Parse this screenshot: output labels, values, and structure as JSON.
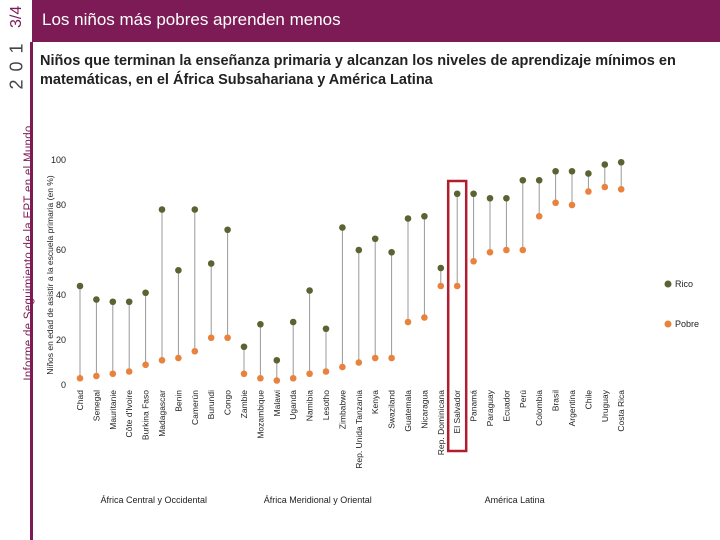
{
  "header": {
    "title": "Los niños más pobres aprenden menos",
    "year": [
      "2",
      "0",
      "1",
      "3/4"
    ]
  },
  "side_label": "Informe de Seguimiento de la EPT en el Mundo",
  "chart_data": {
    "type": "dot-range",
    "title": "Niños que terminan la enseñanza primaria y alcanzan los niveles de aprendizaje mínimos en matemáticas, en el África Subsahariana y América Latina",
    "ylabel": "Niños en edad de asistir a la escuela primaria (en %)",
    "xlabel": "",
    "ylim": [
      0,
      100
    ],
    "yticks": [
      0,
      20,
      40,
      60,
      80,
      100
    ],
    "colors": {
      "rico": "#5a6332",
      "pobre": "#e8823c",
      "line": "#999999",
      "highlight": "#b01e2e"
    },
    "legend": [
      {
        "key": "rico",
        "label": "Rico"
      },
      {
        "key": "pobre",
        "label": "Pobre"
      }
    ],
    "highlight": "El Salvador",
    "groups": [
      {
        "name": "África Central y Occidental",
        "countries": [
          "Chad",
          "Senegal",
          "Mauritanie",
          "Côte d'Ivoire",
          "Burkina Faso",
          "Madagascar",
          "Benin",
          "Camerún",
          "Burundi",
          "Congo"
        ]
      },
      {
        "name": "África Meridional y Oriental",
        "countries": [
          "Zambie",
          "Mozambique",
          "Malawi",
          "Uganda",
          "Namibia",
          "Lesotho",
          "Zimbabwe",
          "Rep. Unida Tanzania",
          "Kenya",
          "Swaziland"
        ]
      },
      {
        "name": "América Latina",
        "countries": [
          "Guatemala",
          "Nicaragua",
          "Rep. Dominicana",
          "El Salvador",
          "Panamá",
          "Paraguay",
          "Ecuador",
          "Perú",
          "Colombia",
          "Brasil",
          "Argentina",
          "Chile",
          "Uruguay",
          "Costa Rica"
        ]
      }
    ],
    "series": [
      {
        "name": "Rico",
        "values": [
          44,
          38,
          37,
          37,
          41,
          78,
          51,
          78,
          54,
          69,
          17,
          27,
          11,
          28,
          42,
          25,
          70,
          60,
          65,
          59,
          74,
          75,
          52,
          85,
          85,
          83,
          83,
          91,
          91,
          95,
          95,
          94,
          98,
          99
        ]
      },
      {
        "name": "Pobre",
        "values": [
          3,
          4,
          5,
          6,
          9,
          11,
          12,
          15,
          21,
          21,
          5,
          3,
          2,
          3,
          5,
          6,
          8,
          10,
          12,
          12,
          28,
          30,
          44,
          44,
          55,
          59,
          60,
          60,
          75,
          81,
          80,
          86,
          88,
          87
        ]
      }
    ]
  }
}
